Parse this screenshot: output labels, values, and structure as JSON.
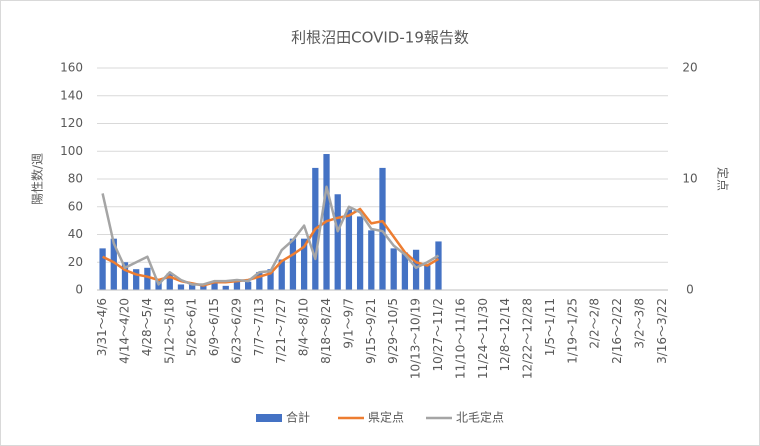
{
  "chart_data": {
    "type": "bar-line",
    "title": "利根沼田COVID-19報告数",
    "ylabel": "陽性数/週",
    "y2label": "定点",
    "categories": [
      "3/31～4/6",
      null,
      "4/14～4/20",
      null,
      "4/28～5/4",
      null,
      "5/12～5/18",
      null,
      "5/26～6/1",
      null,
      "6/9～6/15",
      null,
      "6/23～6/29",
      null,
      "7/7～7/13",
      null,
      "7/21～7/27",
      null,
      "8/4～8/10",
      null,
      "8/18～8/24",
      null,
      "9/1～9/7",
      null,
      "9/15～9/21",
      null,
      "9/29～10/5",
      null,
      "10/13～10/19",
      null,
      "10/27～11/2",
      null,
      "11/10～11/16",
      null,
      "11/24～11/30",
      null,
      "12/8～12/14",
      null,
      "12/22～12/28",
      null,
      "1/5～1/11",
      null,
      "1/19～1/25",
      null,
      "2/2～2/8",
      null,
      "2/16～2/22",
      null,
      "3/2～3/8",
      null,
      "3/16～3/22"
    ],
    "series": [
      {
        "name": "合計",
        "kind": "bar",
        "color": "#4472c4",
        "values": [
          30,
          37,
          20,
          15,
          16,
          8,
          12,
          4,
          4,
          3,
          5,
          3,
          7,
          6,
          13,
          15,
          22,
          37,
          37,
          88,
          98,
          69,
          58,
          53,
          43,
          88,
          30,
          27,
          29,
          18,
          35,
          null,
          null,
          null,
          null,
          null,
          null,
          null,
          null,
          null,
          null,
          null,
          null,
          null,
          null,
          null,
          null,
          null,
          null,
          null,
          null
        ]
      },
      {
        "name": "県定点",
        "kind": "line",
        "axis": "y2",
        "color": "#ed7d31",
        "values": [
          3.0,
          2.5,
          1.8,
          1.4,
          1.2,
          0.9,
          1.2,
          0.8,
          0.6,
          0.4,
          0.7,
          0.7,
          0.8,
          0.9,
          1.2,
          1.5,
          2.6,
          3.2,
          3.9,
          5.5,
          6.2,
          6.5,
          6.7,
          7.3,
          6.0,
          6.2,
          4.8,
          3.4,
          2.5,
          2.2,
          2.8,
          null,
          null,
          null,
          null,
          null,
          null,
          null,
          null,
          null,
          null,
          null,
          null,
          null,
          null,
          null,
          null,
          null,
          null,
          null,
          null
        ]
      },
      {
        "name": "北毛定点",
        "kind": "line",
        "axis": "y2",
        "color": "#a5a5a5",
        "values": [
          8.7,
          4.2,
          2.0,
          2.5,
          3.0,
          0.5,
          1.6,
          0.9,
          0.5,
          0.5,
          0.8,
          0.8,
          0.9,
          0.8,
          1.6,
          1.7,
          3.6,
          4.5,
          5.8,
          2.8,
          9.3,
          5.3,
          7.5,
          7.0,
          5.5,
          5.3,
          4.0,
          3.2,
          2.0,
          2.5,
          3.1,
          null,
          null,
          null,
          null,
          null,
          null,
          null,
          null,
          null,
          null,
          null,
          null,
          null,
          null,
          null,
          null,
          null,
          null,
          null,
          null
        ]
      }
    ],
    "ylim": [
      0,
      160
    ],
    "yticks": [
      0,
      20,
      40,
      60,
      80,
      100,
      120,
      140,
      160
    ],
    "y2lim": [
      0,
      20
    ],
    "y2ticks": [
      0,
      10,
      20
    ],
    "grid": true,
    "legend": "bottom"
  }
}
